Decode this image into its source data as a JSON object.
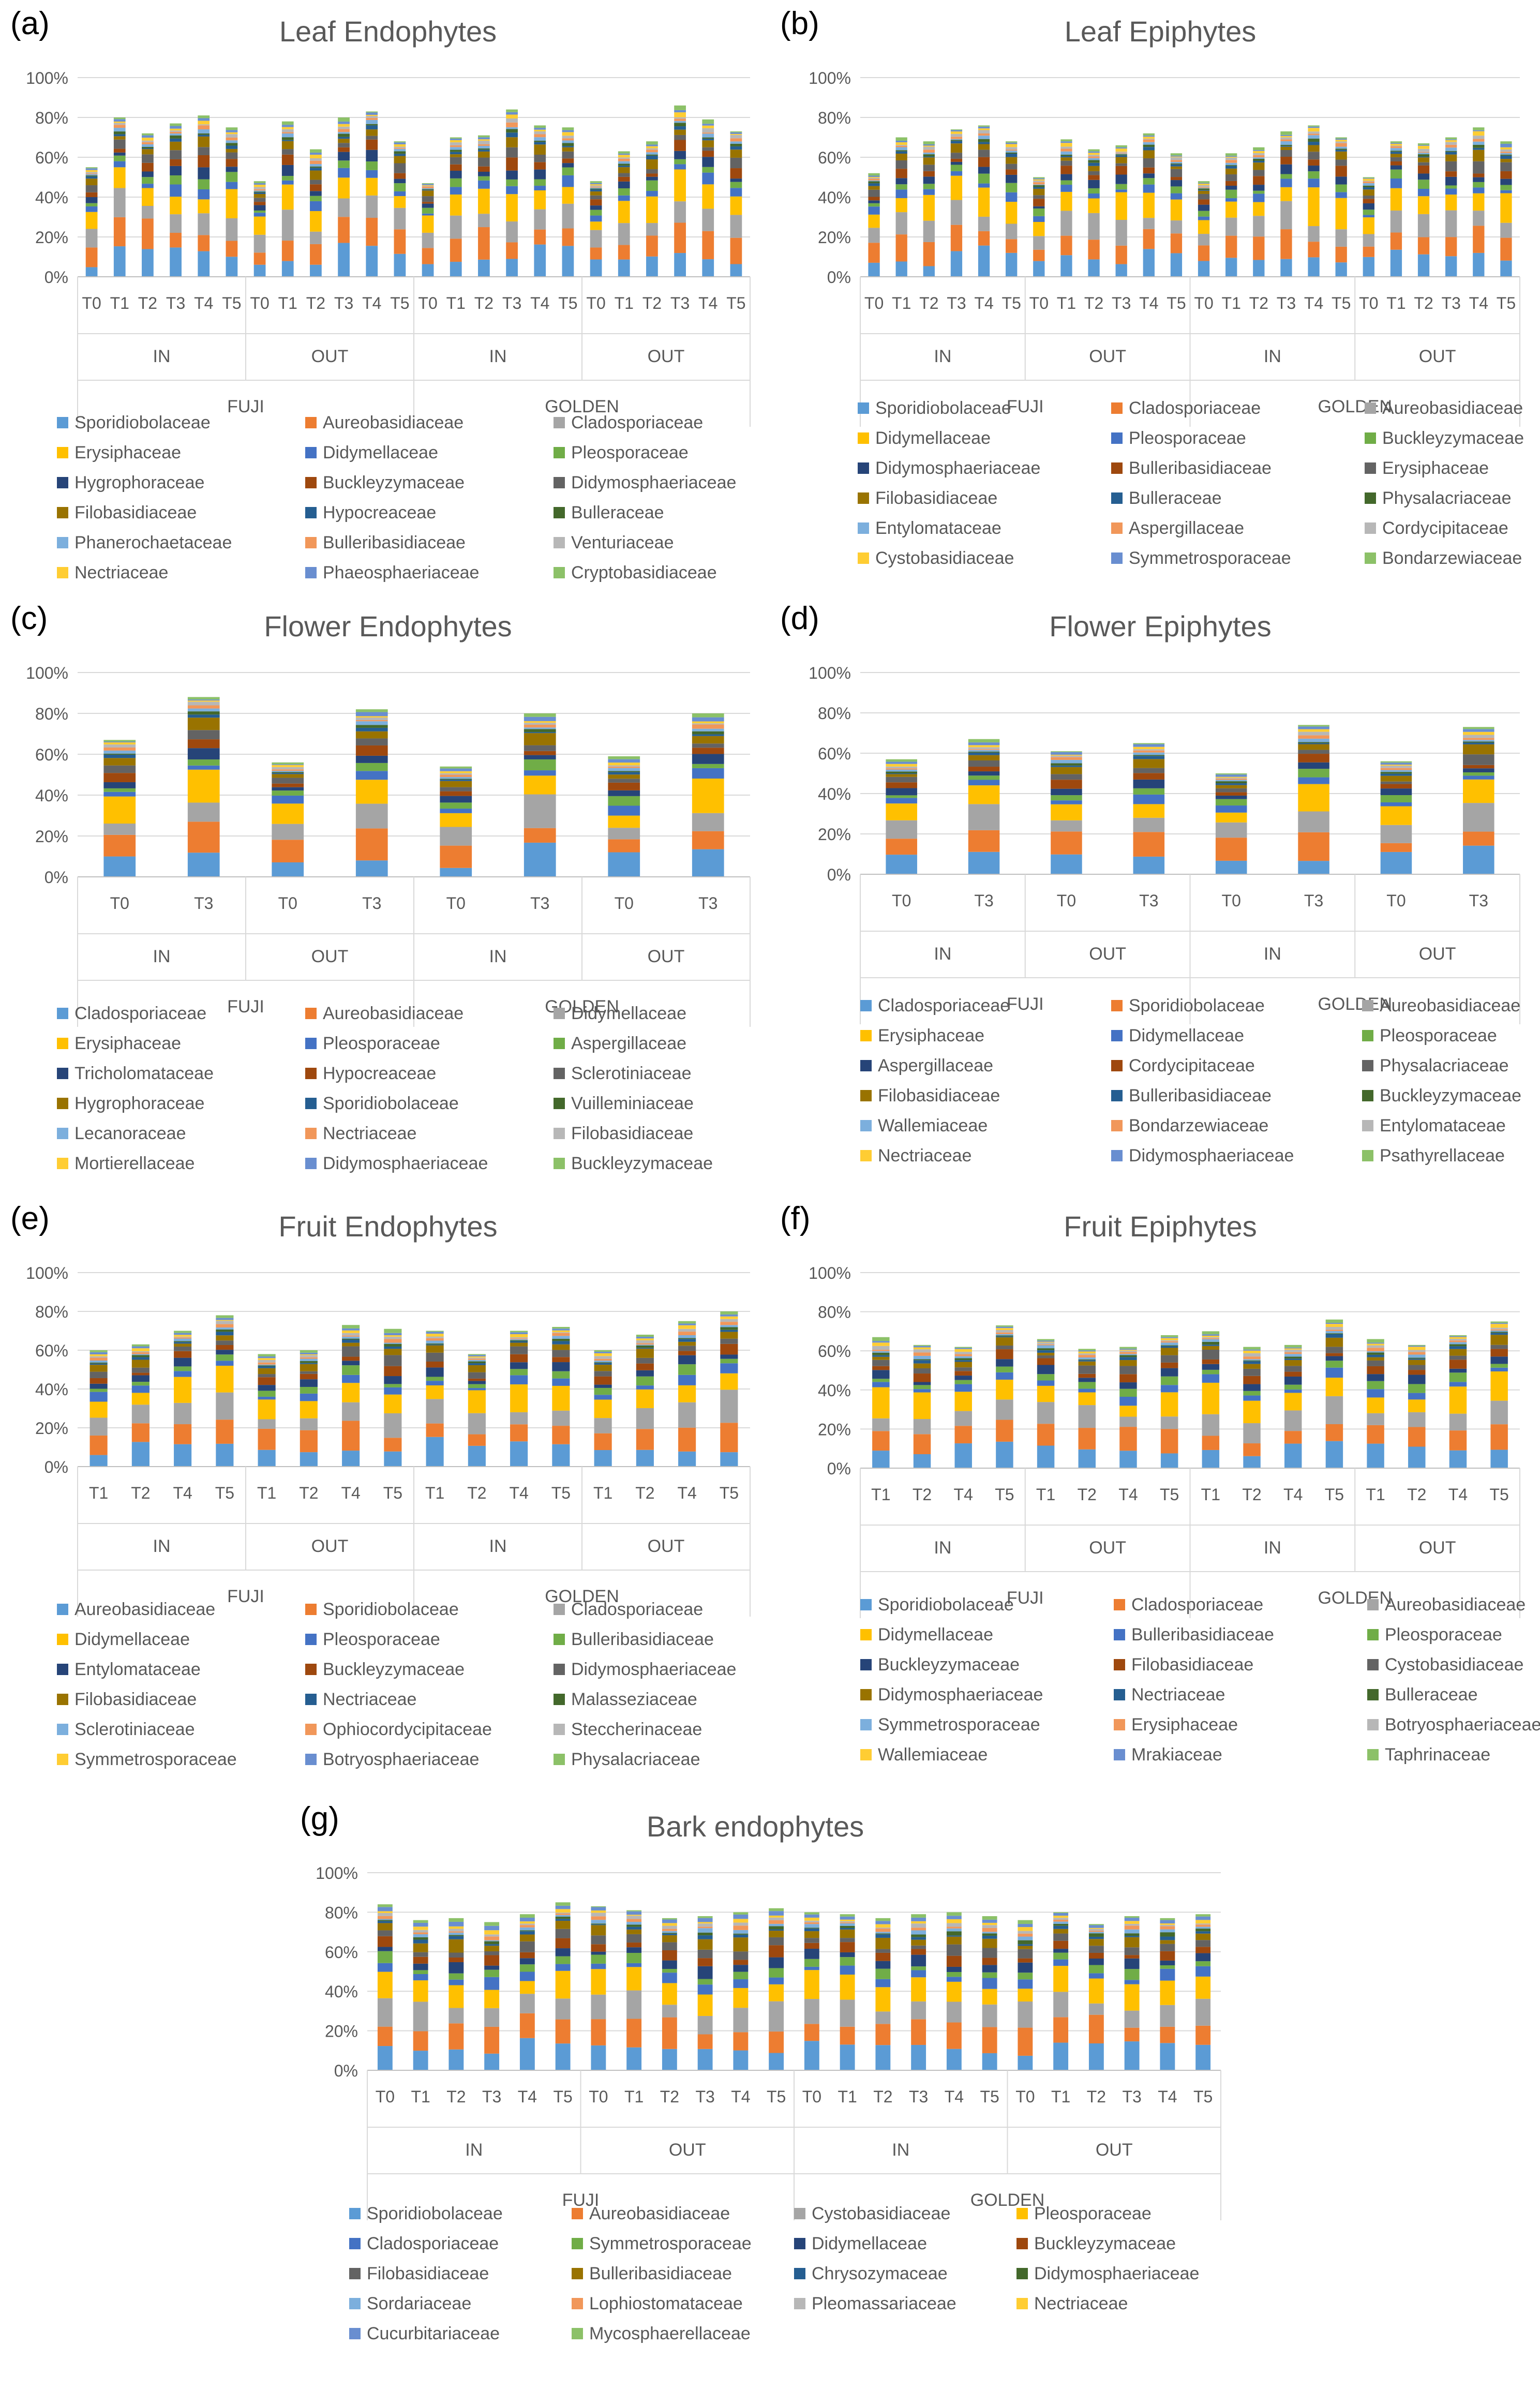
{
  "chart_data": [
    {
      "id": "a",
      "letter": "(a)",
      "title": "Leaf Endophytes",
      "type": "bar",
      "stacked": true,
      "ylim": [
        0,
        100
      ],
      "yticks": [
        "0%",
        "20%",
        "40%",
        "60%",
        "80%",
        "100%"
      ],
      "categories": [
        "T0",
        "T1",
        "T2",
        "T3",
        "T4",
        "T5",
        "T0",
        "T1",
        "T2",
        "T3",
        "T4",
        "T5",
        "T0",
        "T1",
        "T2",
        "T3",
        "T4",
        "T5",
        "T0",
        "T1",
        "T2",
        "T3",
        "T4",
        "T5"
      ],
      "group_level1": [
        "IN",
        "OUT",
        "IN",
        "OUT"
      ],
      "group_level2": [
        "FUJI",
        "GOLDEN"
      ],
      "legend": [
        "Sporidiobolaceae",
        "Aureobasidiaceae",
        "Cladosporiaceae",
        "Erysiphaceae",
        "Didymellaceae",
        "Pleosporaceae",
        "Hygrophoraceae",
        "Buckleyzymaceae",
        "Didymosphaeriaceae",
        "Filobasidiaceae",
        "Hypocreaceae",
        "Bulleraceae",
        "Phanerochaetaceae",
        "Bulleribasidiaceae",
        "Venturiaceae",
        "Nectriaceae",
        "Phaeosphaeriaceae",
        "Cryptobasidiaceae"
      ],
      "totals": [
        55,
        80,
        72,
        77,
        81,
        75,
        48,
        78,
        64,
        80,
        83,
        68,
        47,
        70,
        71,
        84,
        76,
        75,
        48,
        63,
        68,
        86,
        79,
        73
      ]
    },
    {
      "id": "b",
      "letter": "(b)",
      "title": "Leaf Epiphytes",
      "type": "bar",
      "stacked": true,
      "ylim": [
        0,
        100
      ],
      "yticks": [
        "0%",
        "20%",
        "40%",
        "60%",
        "80%",
        "100%"
      ],
      "categories": [
        "T0",
        "T1",
        "T2",
        "T3",
        "T4",
        "T5",
        "T0",
        "T1",
        "T2",
        "T3",
        "T4",
        "T5",
        "T0",
        "T1",
        "T2",
        "T3",
        "T4",
        "T5",
        "T0",
        "T1",
        "T2",
        "T3",
        "T4",
        "T5"
      ],
      "group_level1": [
        "IN",
        "OUT",
        "IN",
        "OUT"
      ],
      "group_level2": [
        "FUJI",
        "GOLDEN"
      ],
      "legend": [
        "Sporidiobolaceae",
        "Cladosporiaceae",
        "Aureobasidiaceae",
        "Didymellaceae",
        "Pleosporaceae",
        "Buckleyzymaceae",
        "Didymosphaeriaceae",
        "Bulleribasidiaceae",
        "Erysiphaceae",
        "Filobasidiaceae",
        "Bulleraceae",
        "Physalacriaceae",
        "Entylomataceae",
        "Aspergillaceae",
        "Cordycipitaceae",
        "Cystobasidiaceae",
        "Symmetrosporaceae",
        "Bondarzewiaceae"
      ],
      "totals": [
        52,
        70,
        68,
        74,
        76,
        68,
        50,
        69,
        64,
        66,
        72,
        62,
        48,
        62,
        65,
        73,
        76,
        70,
        50,
        68,
        67,
        70,
        75,
        68
      ]
    },
    {
      "id": "c",
      "letter": "(c)",
      "title": "Flower Endophytes",
      "type": "bar",
      "stacked": true,
      "ylim": [
        0,
        100
      ],
      "yticks": [
        "0%",
        "20%",
        "40%",
        "60%",
        "80%",
        "100%"
      ],
      "categories": [
        "T0",
        "T3",
        "T0",
        "T3",
        "T0",
        "T3",
        "T0",
        "T3"
      ],
      "group_level1": [
        "IN",
        "OUT",
        "IN",
        "OUT"
      ],
      "group_level2": [
        "FUJI",
        "GOLDEN"
      ],
      "legend": [
        "Cladosporiaceae",
        "Aureobasidiaceae",
        "Didymellaceae",
        "Erysiphaceae",
        "Pleosporaceae",
        "Aspergillaceae",
        "Tricholomataceae",
        "Hypocreaceae",
        "Sclerotiniaceae",
        "Hygrophoraceae",
        "Sporidiobolaceae",
        "Vuilleminiaceae",
        "Lecanoraceae",
        "Nectriaceae",
        "Filobasidiaceae",
        "Mortierellaceae",
        "Didymosphaeriaceae",
        "Buckleyzymaceae"
      ],
      "totals": [
        67,
        88,
        56,
        82,
        54,
        80,
        59,
        80
      ]
    },
    {
      "id": "d",
      "letter": "(d)",
      "title": "Flower Epiphytes",
      "type": "bar",
      "stacked": true,
      "ylim": [
        0,
        100
      ],
      "yticks": [
        "0%",
        "20%",
        "40%",
        "60%",
        "80%",
        "100%"
      ],
      "categories": [
        "T0",
        "T3",
        "T0",
        "T3",
        "T0",
        "T3",
        "T0",
        "T3"
      ],
      "group_level1": [
        "IN",
        "OUT",
        "IN",
        "OUT"
      ],
      "group_level2": [
        "FUJI",
        "GOLDEN"
      ],
      "legend": [
        "Cladosporiaceae",
        "Sporidiobolaceae",
        "Aureobasidiaceae",
        "Erysiphaceae",
        "Didymellaceae",
        "Pleosporaceae",
        "Aspergillaceae",
        "Cordycipitaceae",
        "Physalacriaceae",
        "Filobasidiaceae",
        "Bulleribasidiaceae",
        "Buckleyzymaceae",
        "Wallemiaceae",
        "Bondarzewiaceae",
        "Entylomataceae",
        "Nectriaceae",
        "Didymosphaeriaceae",
        "Psathyrellaceae"
      ],
      "totals": [
        57,
        67,
        61,
        65,
        50,
        74,
        56,
        73
      ]
    },
    {
      "id": "e",
      "letter": "(e)",
      "title": "Fruit Endophytes",
      "type": "bar",
      "stacked": true,
      "ylim": [
        0,
        100
      ],
      "yticks": [
        "0%",
        "20%",
        "40%",
        "60%",
        "80%",
        "100%"
      ],
      "categories": [
        "T1",
        "T2",
        "T4",
        "T5",
        "T1",
        "T2",
        "T4",
        "T5",
        "T1",
        "T2",
        "T4",
        "T5",
        "T1",
        "T2",
        "T4",
        "T5"
      ],
      "group_level1": [
        "IN",
        "OUT",
        "IN",
        "OUT"
      ],
      "group_level2": [
        "FUJI",
        "GOLDEN"
      ],
      "legend": [
        "Aureobasidiaceae",
        "Sporidiobolaceae",
        "Cladosporiaceae",
        "Didymellaceae",
        "Pleosporaceae",
        "Bulleribasidiaceae",
        "Entylomataceae",
        "Buckleyzymaceae",
        "Didymosphaeriaceae",
        "Filobasidiaceae",
        "Nectriaceae",
        "Malasseziaceae",
        "Sclerotiniaceae",
        "Ophiocordycipitaceae",
        "Steccherinaceae",
        "Symmetrosporaceae",
        "Botryosphaeriaceae",
        "Physalacriaceae"
      ],
      "totals": [
        60,
        63,
        70,
        78,
        58,
        60,
        73,
        71,
        70,
        58,
        70,
        72,
        60,
        68,
        75,
        80
      ]
    },
    {
      "id": "f",
      "letter": "(f)",
      "title": "Fruit Epiphytes",
      "type": "bar",
      "stacked": true,
      "ylim": [
        0,
        100
      ],
      "yticks": [
        "0%",
        "20%",
        "40%",
        "60%",
        "80%",
        "100%"
      ],
      "categories": [
        "T1",
        "T2",
        "T4",
        "T5",
        "T1",
        "T2",
        "T4",
        "T5",
        "T1",
        "T2",
        "T4",
        "T5",
        "T1",
        "T2",
        "T4",
        "T5"
      ],
      "group_level1": [
        "IN",
        "OUT",
        "IN",
        "OUT"
      ],
      "group_level2": [
        "FUJI",
        "GOLDEN"
      ],
      "legend": [
        "Sporidiobolaceae",
        "Cladosporiaceae",
        "Aureobasidiaceae",
        "Didymellaceae",
        "Bulleribasidiaceae",
        "Pleosporaceae",
        "Buckleyzymaceae",
        "Filobasidiaceae",
        "Cystobasidiaceae",
        "Didymosphaeriaceae",
        "Nectriaceae",
        "Bulleraceae",
        "Symmetrosporaceae",
        "Erysiphaceae",
        "Botryosphaeriaceae",
        "Wallemiaceae",
        "Mrakiaceae",
        "Taphrinaceae"
      ],
      "totals": [
        67,
        63,
        62,
        73,
        66,
        61,
        62,
        68,
        70,
        62,
        63,
        76,
        66,
        63,
        68,
        75
      ]
    },
    {
      "id": "g",
      "letter": "(g)",
      "title": "Bark endophytes",
      "type": "bar",
      "stacked": true,
      "ylim": [
        0,
        100
      ],
      "yticks": [
        "0%",
        "20%",
        "40%",
        "60%",
        "80%",
        "100%"
      ],
      "categories": [
        "T0",
        "T1",
        "T2",
        "T3",
        "T4",
        "T5",
        "T0",
        "T1",
        "T2",
        "T3",
        "T4",
        "T5",
        "T0",
        "T1",
        "T2",
        "T3",
        "T4",
        "T5",
        "T0",
        "T1",
        "T2",
        "T3",
        "T4",
        "T5"
      ],
      "group_level1": [
        "IN",
        "OUT",
        "IN",
        "OUT"
      ],
      "group_level2": [
        "FUJI",
        "GOLDEN"
      ],
      "legend": [
        "Sporidiobolaceae",
        "Aureobasidiaceae",
        "Cystobasidiaceae",
        "Pleosporaceae",
        "Cladosporiaceae",
        "Symmetrosporaceae",
        "Didymellaceae",
        "Buckleyzymaceae",
        "Filobasidiaceae",
        "Bulleribasidiaceae",
        "Chrysozymaceae",
        "Didymosphaeriaceae",
        "Sordariaceae",
        "Lophiostomataceae",
        "Pleomassariaceae",
        "Nectriaceae",
        "Cucurbitariaceae",
        "Mycosphaerellaceae"
      ],
      "totals": [
        84,
        76,
        77,
        75,
        79,
        85,
        83,
        81,
        77,
        78,
        80,
        82,
        80,
        79,
        77,
        79,
        80,
        78,
        76,
        80,
        74,
        78,
        77,
        79
      ]
    }
  ]
}
